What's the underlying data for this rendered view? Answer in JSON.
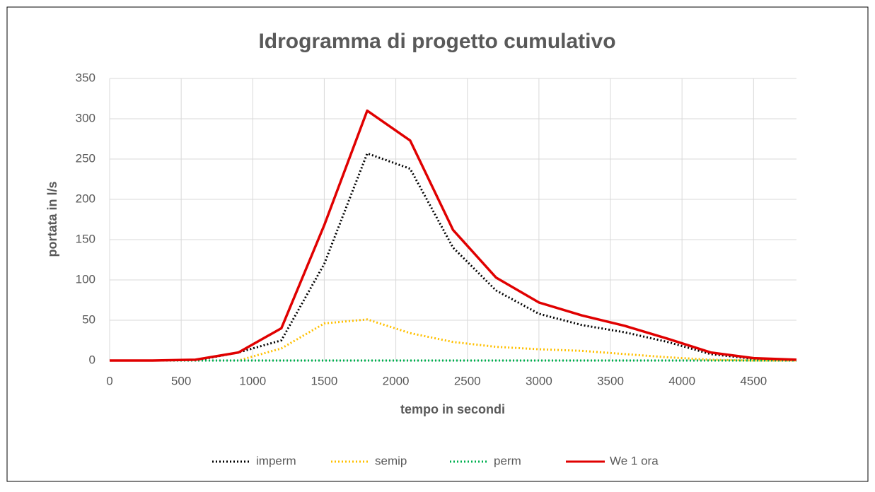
{
  "chart_data": {
    "type": "line",
    "title": "Idrogramma di progetto cumulativo",
    "x_label": "tempo in secondi",
    "y_label": "portata in l/s",
    "x": [
      0,
      300,
      600,
      900,
      1200,
      1500,
      1800,
      2100,
      2400,
      2700,
      3000,
      3300,
      3600,
      3900,
      4200,
      4500,
      4800
    ],
    "series": [
      {
        "name": "imperm",
        "color": "#000000",
        "dashed": true,
        "values": [
          0,
          0,
          0,
          10,
          25,
          120,
          257,
          238,
          140,
          87,
          58,
          44,
          35,
          23,
          8,
          2,
          0.5
        ]
      },
      {
        "name": "semip",
        "color": "#ffc000",
        "dashed": true,
        "values": [
          0,
          0,
          0,
          0,
          15,
          46,
          51,
          34,
          23,
          17,
          14,
          12,
          8,
          4,
          1,
          0,
          0
        ]
      },
      {
        "name": "perm",
        "color": "#00b050",
        "dashed": true,
        "values": [
          0,
          0,
          0,
          0,
          0,
          0,
          0,
          0,
          0,
          0,
          0,
          0,
          0,
          0,
          0,
          0,
          0
        ]
      },
      {
        "name": "We 1 ora",
        "color": "#e00000",
        "dashed": false,
        "values": [
          0,
          0,
          1,
          10,
          40,
          168,
          310,
          273,
          162,
          103,
          72,
          56,
          43,
          27,
          10,
          3,
          1
        ]
      }
    ],
    "xlim": [
      0,
      4800
    ],
    "xticks": [
      0,
      500,
      1000,
      1500,
      2000,
      2500,
      3000,
      3500,
      4000,
      4500
    ],
    "ylim": [
      0,
      350
    ],
    "yticks": [
      0,
      50,
      100,
      150,
      200,
      250,
      300,
      350
    ],
    "grid": true,
    "legend": "bottom"
  }
}
